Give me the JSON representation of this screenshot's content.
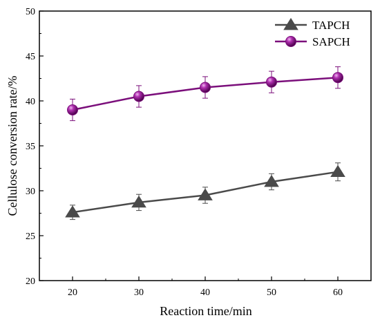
{
  "chart_data": {
    "type": "line",
    "xlabel": "Reaction time/min",
    "ylabel": "Cellulose conversion rate/%",
    "x": [
      20,
      30,
      40,
      50,
      60
    ],
    "xlim": [
      15,
      65
    ],
    "ylim": [
      20,
      50
    ],
    "x_ticks": [
      20,
      30,
      40,
      50,
      60
    ],
    "y_ticks": [
      20,
      25,
      30,
      35,
      40,
      45,
      50
    ],
    "grid": false,
    "legend_position": "top-right",
    "series": [
      {
        "name": "TAPCH",
        "marker": "triangle",
        "color": "#4a4a4a",
        "values": [
          27.6,
          28.7,
          29.5,
          31.0,
          32.1
        ],
        "errors": [
          0.8,
          0.9,
          0.9,
          0.9,
          1.0
        ]
      },
      {
        "name": "SAPCH",
        "marker": "sphere",
        "color": "#7b0f7b",
        "values": [
          39.0,
          40.5,
          41.5,
          42.1,
          42.6
        ],
        "errors": [
          1.2,
          1.2,
          1.2,
          1.2,
          1.2
        ]
      }
    ]
  }
}
